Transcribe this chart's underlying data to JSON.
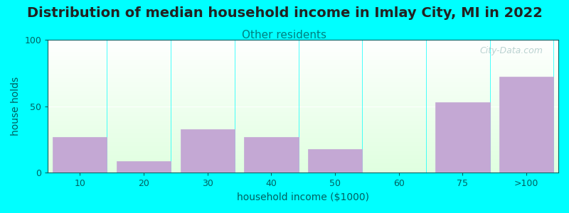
{
  "title": "Distribution of median household income in Imlay City, MI in 2022",
  "subtitle": "Other residents",
  "xlabel": "household income ($1000)",
  "ylabel": "house holds",
  "categories": [
    "10",
    "20",
    "30",
    "40",
    "50",
    "60",
    "75",
    ">100"
  ],
  "values": [
    27,
    9,
    33,
    27,
    18,
    0,
    53,
    72
  ],
  "bar_color": "#C4A8D4",
  "bar_edgecolor": "#C4A8D4",
  "ylim": [
    0,
    100
  ],
  "yticks": [
    0,
    50,
    100
  ],
  "background_color": "#00FFFF",
  "plot_bg_top": "#FFFFFF",
  "plot_bg_bottom": "#DFFFDF",
  "title_fontsize": 14,
  "subtitle_color": "#008080",
  "subtitle_fontsize": 11,
  "axis_label_color": "#006060",
  "watermark": "City-Data.com"
}
